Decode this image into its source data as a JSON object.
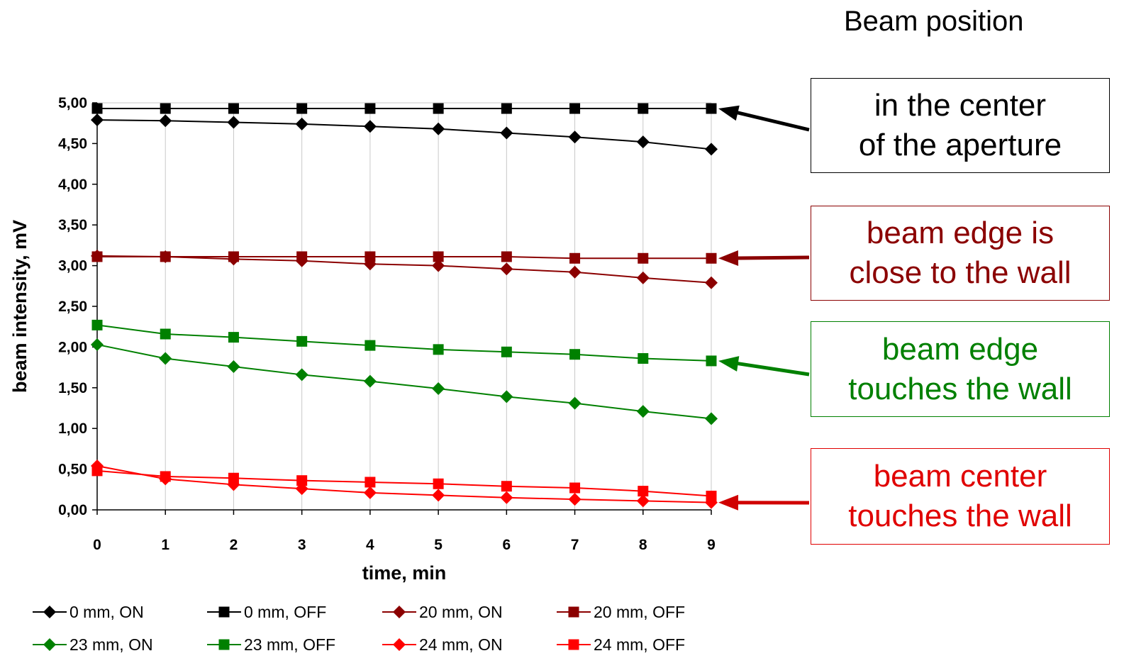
{
  "heading": "Beam position",
  "annotations": [
    {
      "text": "in the center\nof the aperture",
      "color": "#000000",
      "target_series": 1
    },
    {
      "text": "beam edge is\nclose to the wall",
      "color": "#8b0000",
      "target_series": 3
    },
    {
      "text": "beam edge\ntouches the wall",
      "color": "#008000",
      "target_series": 5
    },
    {
      "text": "beam center\ntouches the wall",
      "color": "#e00000",
      "target_series": 6
    }
  ],
  "chart_data": {
    "type": "line",
    "xlabel": "time, min",
    "ylabel": "beam intensity, mV",
    "x": [
      0,
      1,
      2,
      3,
      4,
      5,
      6,
      7,
      8,
      9
    ],
    "x_tick_labels": [
      "0",
      "1",
      "2",
      "3",
      "4",
      "5",
      "6",
      "7",
      "8",
      "9"
    ],
    "ylim": [
      0,
      5
    ],
    "y_tick_labels": [
      "0,00",
      "0,50",
      "1,00",
      "1,50",
      "2,00",
      "2,50",
      "3,00",
      "3,50",
      "4,00",
      "4,50",
      "5,00"
    ],
    "grid": "vertical",
    "legend_position": "bottom",
    "series": [
      {
        "name": "0 mm, ON",
        "color": "#000000",
        "marker": "diamond",
        "values": [
          4.79,
          4.78,
          4.76,
          4.74,
          4.71,
          4.68,
          4.63,
          4.58,
          4.52,
          4.43
        ]
      },
      {
        "name": "0 mm, OFF",
        "color": "#000000",
        "marker": "square",
        "values": [
          4.93,
          4.93,
          4.93,
          4.93,
          4.93,
          4.93,
          4.93,
          4.93,
          4.93,
          4.93
        ]
      },
      {
        "name": "20 mm, ON",
        "color": "#8b0000",
        "marker": "diamond",
        "values": [
          3.12,
          3.11,
          3.08,
          3.06,
          3.02,
          3.0,
          2.96,
          2.92,
          2.85,
          2.79
        ]
      },
      {
        "name": "20 mm, OFF",
        "color": "#8b0000",
        "marker": "square",
        "values": [
          3.11,
          3.11,
          3.11,
          3.11,
          3.11,
          3.11,
          3.11,
          3.09,
          3.09,
          3.09
        ]
      },
      {
        "name": "23 mm, ON",
        "color": "#008000",
        "marker": "diamond",
        "values": [
          2.03,
          1.86,
          1.76,
          1.66,
          1.58,
          1.49,
          1.39,
          1.31,
          1.21,
          1.12
        ]
      },
      {
        "name": "23 mm, OFF",
        "color": "#008000",
        "marker": "square",
        "values": [
          2.27,
          2.16,
          2.12,
          2.07,
          2.02,
          1.97,
          1.94,
          1.91,
          1.86,
          1.83
        ]
      },
      {
        "name": "24 mm, ON",
        "color": "#ff0000",
        "marker": "diamond",
        "values": [
          0.54,
          0.38,
          0.31,
          0.26,
          0.21,
          0.18,
          0.15,
          0.13,
          0.11,
          0.09
        ]
      },
      {
        "name": "24 mm, OFF",
        "color": "#ff0000",
        "marker": "square",
        "values": [
          0.48,
          0.41,
          0.39,
          0.36,
          0.34,
          0.32,
          0.29,
          0.27,
          0.23,
          0.17
        ]
      }
    ]
  }
}
